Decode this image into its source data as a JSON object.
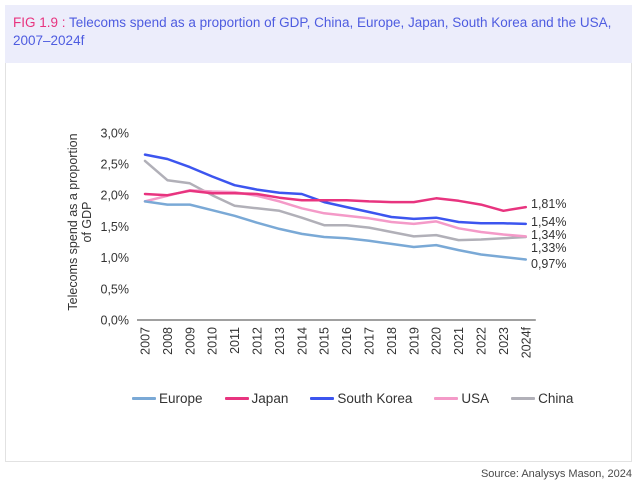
{
  "header": {
    "fig_label": "FIG 1.9 :",
    "title": " Telecoms spend as a proportion of GDP, China, Europe, Japan, South Korea and the USA, 2007–2024f"
  },
  "source": "Source: Analysys Mason, 2024",
  "chart_data": {
    "type": "line",
    "title": "Telecoms spend as a proportion of GDP, China, Europe, Japan, South Korea and the USA, 2007–2024f",
    "xlabel": "",
    "ylabel": "Telecoms spend as a proportion of GDP",
    "ylim": [
      0,
      3.0
    ],
    "yticks": [
      "0,0%",
      "0,5%",
      "1,0%",
      "1,5%",
      "2,0%",
      "2,5%",
      "3,0%"
    ],
    "ytick_values": [
      0,
      0.5,
      1.0,
      1.5,
      2.0,
      2.5,
      3.0
    ],
    "grid": false,
    "legend_position": "bottom",
    "categories": [
      "2007",
      "2008",
      "2009",
      "2010",
      "2011",
      "2012",
      "2013",
      "2014",
      "2015",
      "2016",
      "2017",
      "2018",
      "2019",
      "2020",
      "2021",
      "2022",
      "2023",
      "2024f"
    ],
    "series": [
      {
        "name": "Europe",
        "color": "#7aa9d6",
        "values": [
          1.9,
          1.85,
          1.85,
          1.76,
          1.67,
          1.56,
          1.46,
          1.38,
          1.33,
          1.31,
          1.27,
          1.22,
          1.17,
          1.2,
          1.12,
          1.05,
          1.01,
          0.97
        ],
        "end_label": "0,97%"
      },
      {
        "name": "Japan",
        "color": "#e8347f",
        "values": [
          2.02,
          2.0,
          2.07,
          2.03,
          2.03,
          2.02,
          1.96,
          1.92,
          1.92,
          1.92,
          1.9,
          1.89,
          1.89,
          1.95,
          1.91,
          1.85,
          1.75,
          1.81
        ],
        "end_label": "1,81%"
      },
      {
        "name": "South Korea",
        "color": "#3c55ef",
        "values": [
          2.65,
          2.58,
          2.45,
          2.3,
          2.16,
          2.09,
          2.04,
          2.02,
          1.89,
          1.81,
          1.73,
          1.65,
          1.62,
          1.64,
          1.57,
          1.55,
          1.55,
          1.54
        ],
        "end_label": "1,54%"
      },
      {
        "name": "USA",
        "color": "#f49ac8",
        "values": [
          1.9,
          1.99,
          2.08,
          2.06,
          2.05,
          1.99,
          1.9,
          1.79,
          1.71,
          1.67,
          1.63,
          1.57,
          1.54,
          1.58,
          1.47,
          1.41,
          1.37,
          1.34
        ],
        "end_label": "1,34%"
      },
      {
        "name": "China",
        "color": "#b1b0b8",
        "values": [
          2.55,
          2.24,
          2.19,
          2.0,
          1.83,
          1.79,
          1.75,
          1.64,
          1.52,
          1.52,
          1.48,
          1.41,
          1.34,
          1.36,
          1.28,
          1.29,
          1.31,
          1.33
        ],
        "end_label": "1,33%"
      }
    ],
    "end_labels_order": [
      "1,81%",
      "1,54%",
      "1,34%",
      "1,33%",
      "0,97%"
    ]
  }
}
